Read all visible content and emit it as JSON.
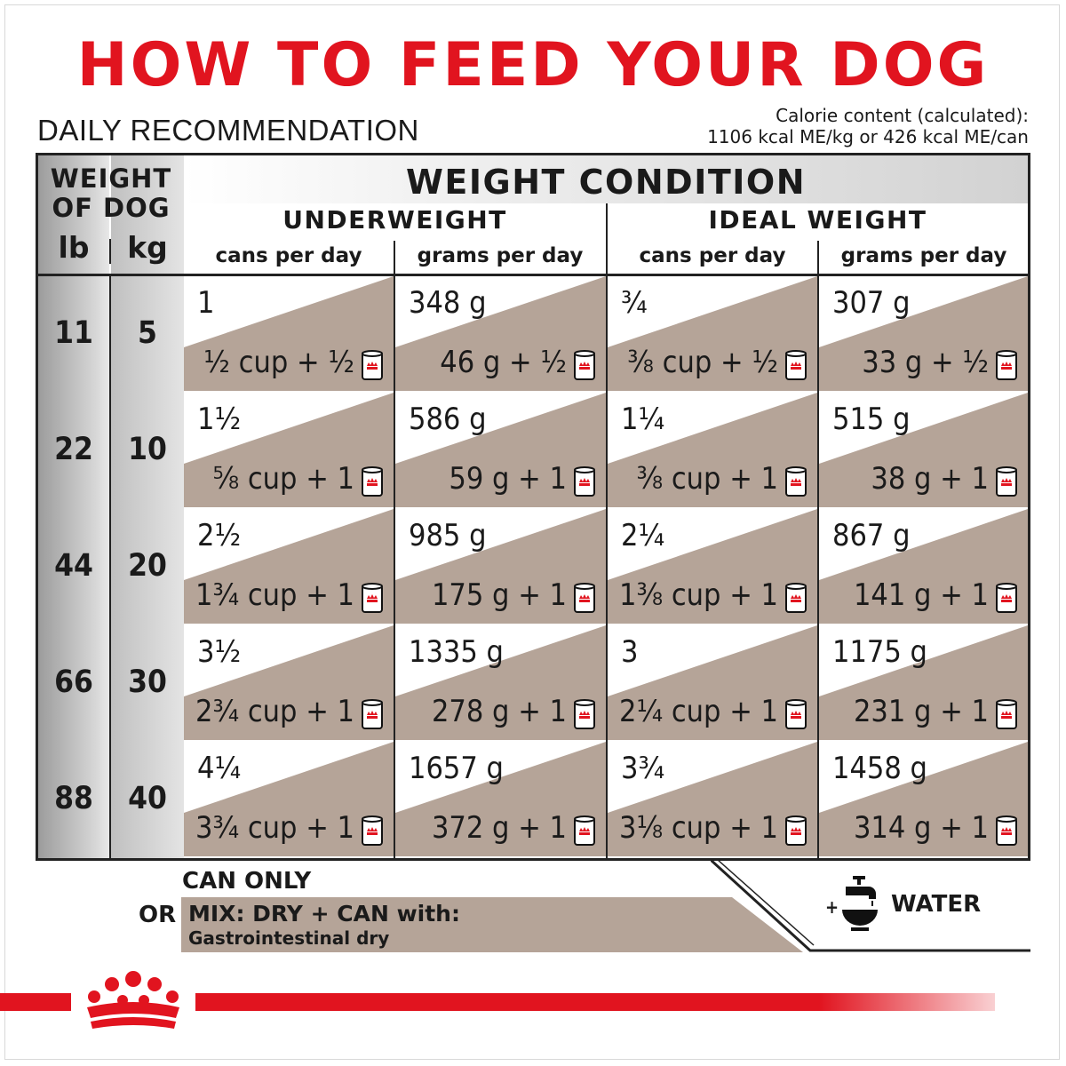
{
  "title": "HOW TO FEED YOUR DOG",
  "subtitle": "DAILY RECOMMENDATION",
  "calorie": {
    "line1": "Calorie content (calculated):",
    "line2": "1106 kcal ME/kg or 426 kcal ME/can"
  },
  "table": {
    "weight_header_line1": "WEIGHT",
    "weight_header_line2": "OF DOG",
    "unit_lb": "lb",
    "unit_kg": "kg",
    "condition_header": "WEIGHT CONDITION",
    "groups": [
      "UNDERWEIGHT",
      "IDEAL WEIGHT"
    ],
    "subheaders": [
      "cans per day",
      "grams per day",
      "cans per day",
      "grams per day"
    ],
    "rows": [
      {
        "lb": "11",
        "kg": "5",
        "cells": [
          {
            "top": "1",
            "bottom": "½ cup + ½"
          },
          {
            "top": "348 g",
            "bottom": "46 g + ½"
          },
          {
            "top": "¾",
            "bottom": "⅜ cup + ½"
          },
          {
            "top": "307 g",
            "bottom": "33 g + ½"
          }
        ]
      },
      {
        "lb": "22",
        "kg": "10",
        "cells": [
          {
            "top": "1½",
            "bottom": "⅝ cup + 1"
          },
          {
            "top": "586 g",
            "bottom": "59 g + 1"
          },
          {
            "top": "1¼",
            "bottom": "⅜ cup + 1"
          },
          {
            "top": "515 g",
            "bottom": "38 g + 1"
          }
        ]
      },
      {
        "lb": "44",
        "kg": "20",
        "cells": [
          {
            "top": "2½",
            "bottom": "1¾ cup + 1"
          },
          {
            "top": "985 g",
            "bottom": "175 g + 1"
          },
          {
            "top": "2¼",
            "bottom": "1⅜ cup + 1"
          },
          {
            "top": "867 g",
            "bottom": "141 g + 1"
          }
        ]
      },
      {
        "lb": "66",
        "kg": "30",
        "cells": [
          {
            "top": "3½",
            "bottom": "2¾ cup + 1"
          },
          {
            "top": "1335 g",
            "bottom": "278 g + 1"
          },
          {
            "top": "3",
            "bottom": "2¼ cup + 1"
          },
          {
            "top": "1175 g",
            "bottom": "231 g + 1"
          }
        ]
      },
      {
        "lb": "88",
        "kg": "40",
        "cells": [
          {
            "top": "4¼",
            "bottom": "3¾ cup + 1"
          },
          {
            "top": "1657 g",
            "bottom": "372 g + 1"
          },
          {
            "top": "3¾",
            "bottom": "3⅛ cup + 1"
          },
          {
            "top": "1458 g",
            "bottom": "314 g + 1"
          }
        ]
      }
    ]
  },
  "footer": {
    "can_only": "CAN ONLY",
    "or": "OR",
    "mix_line1": "MIX: DRY + CAN with:",
    "mix_line2": "Gastrointestinal dry",
    "plus": "+",
    "water": "WATER"
  },
  "colors": {
    "brand_red": "#e1141f",
    "cell_tan": "#b5a498",
    "grid": "#222222"
  },
  "icons": [
    "can-icon",
    "water-tap-icon",
    "royal-canin-crown-logo"
  ]
}
